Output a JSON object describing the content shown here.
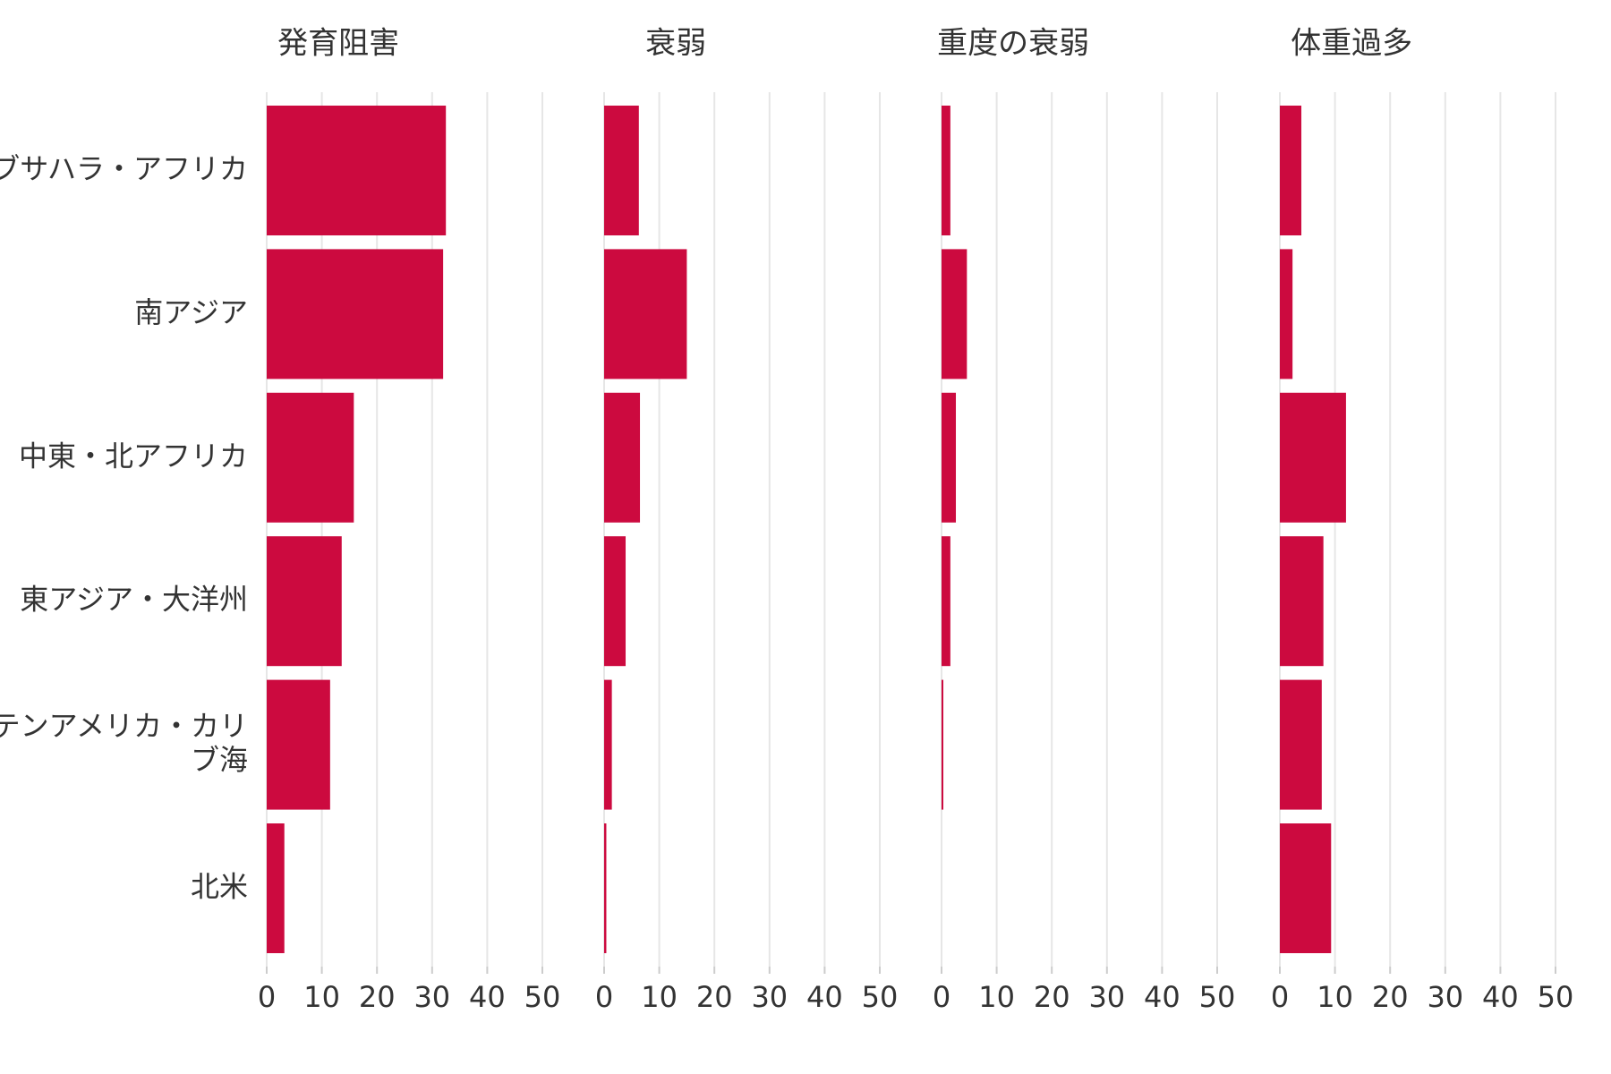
{
  "chart_data": {
    "type": "bar",
    "orientation": "horizontal",
    "facets": [
      "発育阻害",
      "衰弱",
      "重度の衰弱",
      "体重過多"
    ],
    "categories": [
      [
        "サブサハラ・アフリカ"
      ],
      [
        "南アジア"
      ],
      [
        "中東・北アフリカ"
      ],
      [
        "東アジア・大洋州"
      ],
      [
        "ラテンアメリカ・カリ",
        "ブ海"
      ],
      [
        "北米"
      ]
    ],
    "series": [
      {
        "values": [
          32.5,
          32,
          15.8,
          13.6,
          11.5,
          3.2
        ]
      },
      {
        "values": [
          6.3,
          15,
          6.5,
          3.9,
          1.4,
          0.4
        ]
      },
      {
        "values": [
          1.6,
          4.6,
          2.6,
          1.6,
          0.3,
          0
        ]
      },
      {
        "values": [
          3.9,
          2.3,
          12,
          7.9,
          7.6,
          9.3
        ]
      }
    ],
    "xlim": [
      0,
      50
    ],
    "xticks": [
      "0",
      "10",
      "20",
      "30",
      "40",
      "50"
    ],
    "grid": true,
    "bar_color": "#cc0a3f"
  }
}
